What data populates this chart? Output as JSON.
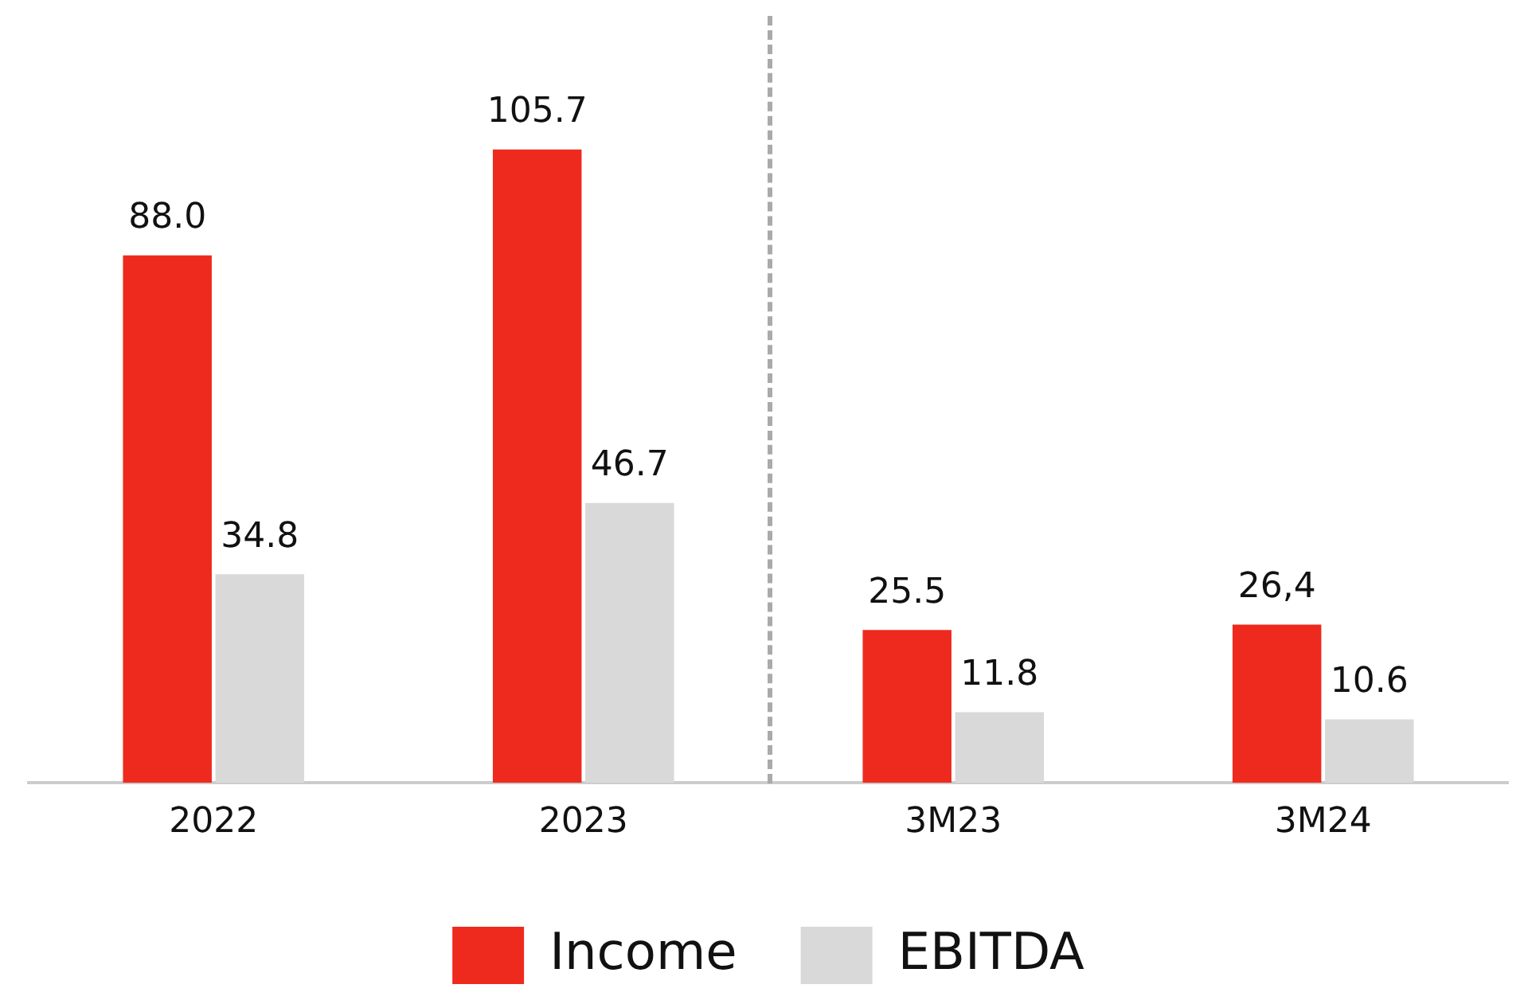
{
  "chart_data": {
    "type": "bar",
    "categories": [
      "2022",
      "2023",
      "3M23",
      "3M24"
    ],
    "series": [
      {
        "name": "Income",
        "color": "#ee2a1e",
        "values": [
          88.0,
          105.7,
          25.5,
          26.4
        ],
        "value_labels": [
          "88.0",
          "105.7",
          "25.5",
          "26,4"
        ]
      },
      {
        "name": "EBITDA",
        "color": "#d9d9d9",
        "values": [
          34.8,
          46.7,
          11.8,
          10.6
        ],
        "value_labels": [
          "34.8",
          "46.7",
          "11.8",
          "10.6"
        ]
      }
    ],
    "legend": "bottom",
    "tick_labels": "x"
  }
}
